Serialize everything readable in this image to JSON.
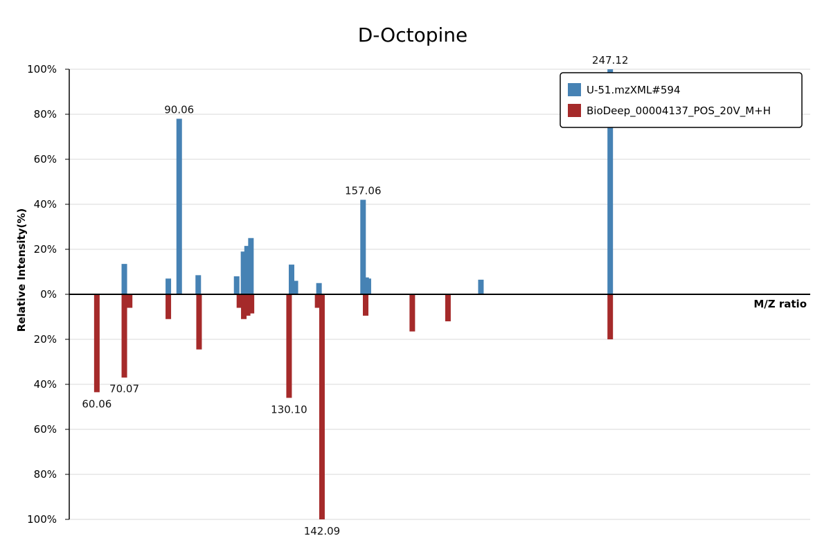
{
  "chart_data": {
    "type": "bar",
    "title": "D-Octopine",
    "xlabel": "M/Z ratio",
    "ylabel": "Relative Intensity(%)",
    "y_ticks": [
      "100%",
      "80%",
      "60%",
      "40%",
      "20%",
      "0%",
      "20%",
      "40%",
      "60%",
      "80%",
      "100%"
    ],
    "ylim": [
      -100,
      100
    ],
    "xlim": [
      50,
      320
    ],
    "grid": true,
    "legend_position": "top-right",
    "series": [
      {
        "name": "U-51.mzXML#594",
        "color": "#4682b4",
        "direction": "up",
        "peaks": [
          {
            "mz": 70.07,
            "intensity": 13.5
          },
          {
            "mz": 86.1,
            "intensity": 7.0
          },
          {
            "mz": 90.06,
            "intensity": 78.0
          },
          {
            "mz": 97.0,
            "intensity": 8.5
          },
          {
            "mz": 111.0,
            "intensity": 8.0
          },
          {
            "mz": 113.5,
            "intensity": 19.0
          },
          {
            "mz": 114.8,
            "intensity": 21.5
          },
          {
            "mz": 116.2,
            "intensity": 25.0
          },
          {
            "mz": 131.0,
            "intensity": 13.2
          },
          {
            "mz": 132.4,
            "intensity": 6.0
          },
          {
            "mz": 141.0,
            "intensity": 5.0
          },
          {
            "mz": 157.06,
            "intensity": 42.0
          },
          {
            "mz": 158.2,
            "intensity": 7.5
          },
          {
            "mz": 159.0,
            "intensity": 7.0
          },
          {
            "mz": 200.0,
            "intensity": 6.5
          },
          {
            "mz": 247.12,
            "intensity": 100.0
          }
        ]
      },
      {
        "name": "BioDeep_00004137_POS_20V_M+H",
        "color": "#a52a2a",
        "direction": "down",
        "peaks": [
          {
            "mz": 60.06,
            "intensity": 43.5
          },
          {
            "mz": 70.07,
            "intensity": 37.0
          },
          {
            "mz": 72.0,
            "intensity": 6.0
          },
          {
            "mz": 86.1,
            "intensity": 11.0
          },
          {
            "mz": 97.3,
            "intensity": 24.5
          },
          {
            "mz": 112.0,
            "intensity": 6.0
          },
          {
            "mz": 113.6,
            "intensity": 11.0
          },
          {
            "mz": 115.0,
            "intensity": 9.5
          },
          {
            "mz": 116.4,
            "intensity": 8.5
          },
          {
            "mz": 130.1,
            "intensity": 46.0
          },
          {
            "mz": 140.5,
            "intensity": 6.0
          },
          {
            "mz": 142.09,
            "intensity": 100.0
          },
          {
            "mz": 158.0,
            "intensity": 9.5
          },
          {
            "mz": 175.0,
            "intensity": 16.5
          },
          {
            "mz": 188.0,
            "intensity": 12.0
          },
          {
            "mz": 247.12,
            "intensity": 20.0
          }
        ]
      }
    ],
    "peak_labels": [
      {
        "text": "90.06",
        "series": 0,
        "mz": 90.06
      },
      {
        "text": "157.06",
        "series": 0,
        "mz": 157.06
      },
      {
        "text": "247.12",
        "series": 0,
        "mz": 247.12
      },
      {
        "text": "60.06",
        "series": 1,
        "mz": 60.06
      },
      {
        "text": "70.07",
        "series": 1,
        "mz": 70.07
      },
      {
        "text": "130.10",
        "series": 1,
        "mz": 130.1
      },
      {
        "text": "142.09",
        "series": 1,
        "mz": 142.09
      }
    ]
  }
}
